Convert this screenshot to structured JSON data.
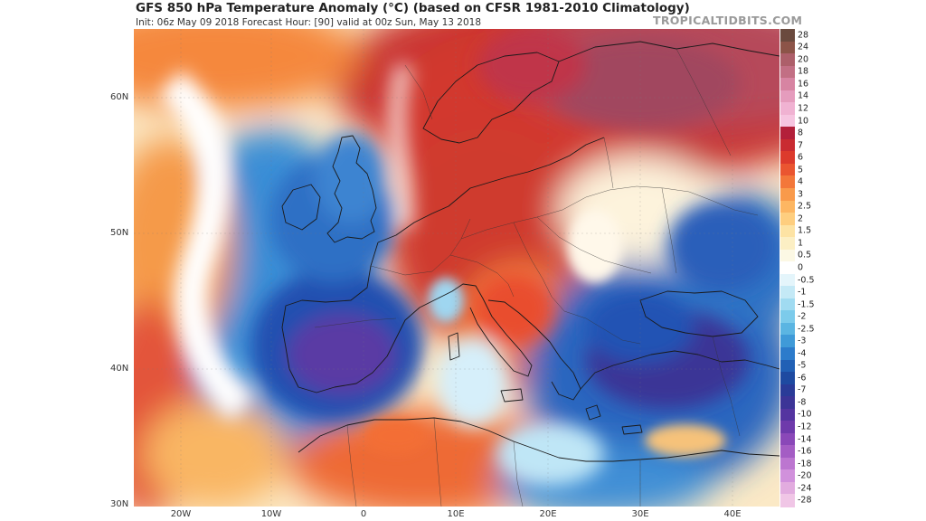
{
  "header": {
    "title": "GFS 850 hPa Temperature Anomaly (°C) (based on CFSR 1981-2010 Climatology)",
    "subtitle": "Init: 06z May 09 2018   Forecast Hour: [90]   valid at 00z Sun, May 13 2018",
    "source": "TROPICALTIDBITS.COM"
  },
  "map": {
    "region": "Europe, North Africa and the North Atlantic",
    "latitude_labels": [
      "60N",
      "50N",
      "40N",
      "30N"
    ],
    "longitude_labels": [
      "20W",
      "10W",
      "0",
      "10E",
      "20E",
      "30E",
      "40E"
    ],
    "anomaly_features": [
      {
        "name": "Iberia cold anomaly",
        "value": -5
      },
      {
        "name": "British Isles cold anomaly",
        "value": -3
      },
      {
        "name": "Atlantic cold anomaly",
        "value": -4
      },
      {
        "name": "Balkans / Turkey cold anomaly",
        "value": -6
      },
      {
        "name": "Black Sea cold anomaly",
        "value": -4
      },
      {
        "name": "Central Europe warm anomaly",
        "value": 6
      },
      {
        "name": "Scandinavia warm anomaly",
        "value": 8
      },
      {
        "name": "North Africa warm anomaly",
        "value": 4
      }
    ]
  },
  "colorbar": {
    "labels": [
      "28",
      "24",
      "20",
      "18",
      "16",
      "14",
      "12",
      "10",
      "8",
      "7",
      "6",
      "5",
      "4",
      "3",
      "2.5",
      "2",
      "1.5",
      "1",
      "0.5",
      "0",
      "-0.5",
      "-1",
      "-1.5",
      "-2",
      "-2.5",
      "-3",
      "-4",
      "-5",
      "-6",
      "-7",
      "-8",
      "-10",
      "-12",
      "-14",
      "-16",
      "-18",
      "-20",
      "-24",
      "-28"
    ],
    "colors": [
      "#6a4a3e",
      "#8c5448",
      "#ad5f6a",
      "#c26f84",
      "#d784a2",
      "#e59cbd",
      "#f0b2d2",
      "#f6c5e0",
      "#b3203a",
      "#c92b31",
      "#dc3a2c",
      "#ea5530",
      "#f3773a",
      "#f99a4b",
      "#fdb662",
      "#fece7f",
      "#fde3a4",
      "#fcefc4",
      "#fcf8e4",
      "#ffffff",
      "#e4f5fb",
      "#c4e9f6",
      "#a0dbf1",
      "#7ccbeb",
      "#5bb5e2",
      "#3f9ad8",
      "#2c7bcb",
      "#2160b5",
      "#1e4aa1",
      "#2a3b98",
      "#3c3497",
      "#5434a0",
      "#6e3aab",
      "#8a48b8",
      "#a45dc4",
      "#bc76d0",
      "#d191dc",
      "#e2acdf",
      "#f0c6e6"
    ]
  }
}
